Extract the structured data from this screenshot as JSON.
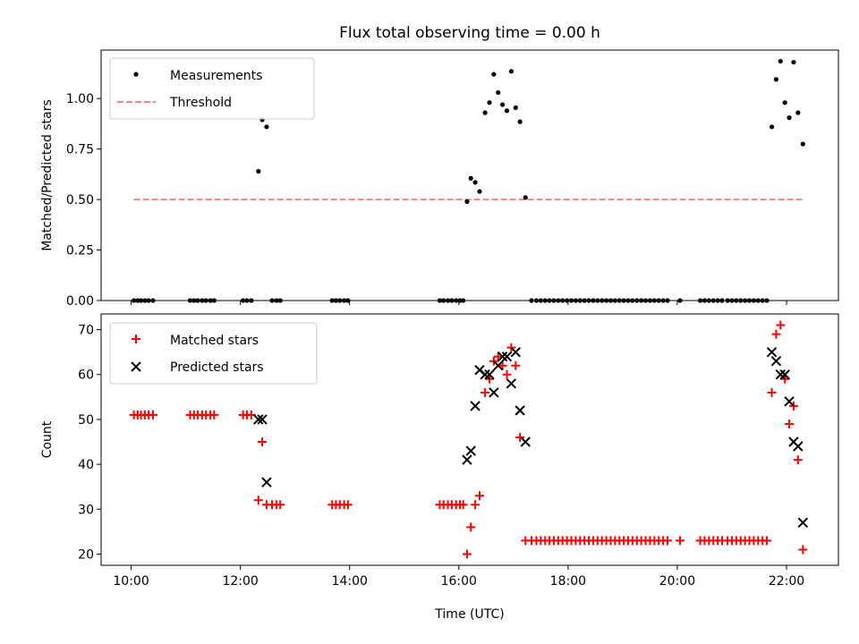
{
  "title": "Flux total observing time = 0.00 h",
  "colors": {
    "measure": "#000000",
    "threshold": "#ff7f7f",
    "matched": "#ff0000",
    "predicted": "#000000"
  },
  "chart_data": [
    {
      "type": "scatter",
      "ylabel": "Matched/Predicted stars",
      "xlim": [
        9.45,
        22.95
      ],
      "ylim": [
        0.0,
        1.24
      ],
      "yticks": [
        0.0,
        0.25,
        0.5,
        0.75,
        1.0
      ],
      "ytick_labels": [
        "0.00",
        "0.25",
        "0.50",
        "0.75",
        "1.00"
      ],
      "legend": {
        "position": "top-left",
        "entries": [
          "Measurements",
          "Threshold"
        ]
      },
      "threshold": {
        "name": "Threshold",
        "y": 0.5,
        "x": [
          10.05,
          22.33
        ]
      },
      "series": [
        {
          "name": "Measurements",
          "points": [
            [
              10.05,
              0
            ],
            [
              10.12,
              0
            ],
            [
              10.18,
              0
            ],
            [
              10.25,
              0
            ],
            [
              10.32,
              0
            ],
            [
              10.4,
              0
            ],
            [
              11.08,
              0
            ],
            [
              11.15,
              0
            ],
            [
              11.22,
              0
            ],
            [
              11.3,
              0
            ],
            [
              11.37,
              0
            ],
            [
              11.45,
              0
            ],
            [
              11.52,
              0
            ],
            [
              12.05,
              0
            ],
            [
              12.12,
              0
            ],
            [
              12.2,
              0
            ],
            [
              12.33,
              0.64
            ],
            [
              12.4,
              0.895
            ],
            [
              12.48,
              0.86
            ],
            [
              12.58,
              0
            ],
            [
              12.66,
              0
            ],
            [
              12.73,
              0
            ],
            [
              13.68,
              0
            ],
            [
              13.75,
              0
            ],
            [
              13.82,
              0
            ],
            [
              13.9,
              0
            ],
            [
              13.97,
              0
            ],
            [
              15.65,
              0
            ],
            [
              15.72,
              0
            ],
            [
              15.8,
              0
            ],
            [
              15.87,
              0
            ],
            [
              15.95,
              0
            ],
            [
              16.02,
              0
            ],
            [
              16.08,
              0
            ],
            [
              16.15,
              0.49
            ],
            [
              16.22,
              0.605
            ],
            [
              16.3,
              0.585
            ],
            [
              16.38,
              0.54
            ],
            [
              16.48,
              0.93
            ],
            [
              16.56,
              0.98
            ],
            [
              16.64,
              1.12
            ],
            [
              16.72,
              1.03
            ],
            [
              16.8,
              0.97
            ],
            [
              16.88,
              0.94
            ],
            [
              16.96,
              1.135
            ],
            [
              17.04,
              0.955
            ],
            [
              17.12,
              0.885
            ],
            [
              17.22,
              0.51
            ],
            [
              17.33,
              0
            ],
            [
              17.42,
              0
            ],
            [
              17.5,
              0
            ],
            [
              17.58,
              0
            ],
            [
              17.66,
              0
            ],
            [
              17.74,
              0
            ],
            [
              17.82,
              0
            ],
            [
              17.9,
              0
            ],
            [
              17.98,
              0
            ],
            [
              18.06,
              0
            ],
            [
              18.14,
              0
            ],
            [
              18.22,
              0
            ],
            [
              18.3,
              0
            ],
            [
              18.38,
              0
            ],
            [
              18.46,
              0
            ],
            [
              18.54,
              0
            ],
            [
              18.62,
              0
            ],
            [
              18.7,
              0
            ],
            [
              18.78,
              0
            ],
            [
              18.86,
              0
            ],
            [
              18.94,
              0
            ],
            [
              19.02,
              0
            ],
            [
              19.1,
              0
            ],
            [
              19.18,
              0
            ],
            [
              19.26,
              0
            ],
            [
              19.34,
              0
            ],
            [
              19.42,
              0
            ],
            [
              19.5,
              0
            ],
            [
              19.58,
              0
            ],
            [
              19.66,
              0
            ],
            [
              19.74,
              0
            ],
            [
              19.82,
              0
            ],
            [
              20.05,
              0
            ],
            [
              20.42,
              0
            ],
            [
              20.5,
              0
            ],
            [
              20.58,
              0
            ],
            [
              20.66,
              0
            ],
            [
              20.74,
              0
            ],
            [
              20.82,
              0
            ],
            [
              20.92,
              0
            ],
            [
              21.0,
              0
            ],
            [
              21.08,
              0
            ],
            [
              21.16,
              0
            ],
            [
              21.24,
              0
            ],
            [
              21.32,
              0
            ],
            [
              21.4,
              0
            ],
            [
              21.48,
              0
            ],
            [
              21.56,
              0
            ],
            [
              21.64,
              0
            ],
            [
              21.73,
              0.86
            ],
            [
              21.81,
              1.095
            ],
            [
              21.89,
              1.185
            ],
            [
              21.97,
              0.98
            ],
            [
              22.05,
              0.905
            ],
            [
              22.13,
              1.18
            ],
            [
              22.21,
              0.93
            ],
            [
              22.3,
              0.775
            ]
          ]
        }
      ]
    },
    {
      "type": "scatter",
      "xlabel": "Time (UTC)",
      "ylabel": "Count",
      "xlim": [
        9.45,
        22.95
      ],
      "ylim": [
        17.5,
        73.5
      ],
      "xticks": [
        10,
        12,
        14,
        16,
        18,
        20,
        22
      ],
      "xtick_labels": [
        "10:00",
        "12:00",
        "14:00",
        "16:00",
        "18:00",
        "20:00",
        "22:00"
      ],
      "yticks": [
        20,
        30,
        40,
        50,
        60,
        70
      ],
      "ytick_labels": [
        "20",
        "30",
        "40",
        "50",
        "60",
        "70"
      ],
      "legend": {
        "position": "top-left",
        "entries": [
          "Matched stars",
          "Predicted stars"
        ]
      },
      "series": [
        {
          "name": "Matched stars",
          "points": [
            [
              10.05,
              51
            ],
            [
              10.12,
              51
            ],
            [
              10.18,
              51
            ],
            [
              10.25,
              51
            ],
            [
              10.32,
              51
            ],
            [
              10.4,
              51
            ],
            [
              11.08,
              51
            ],
            [
              11.15,
              51
            ],
            [
              11.22,
              51
            ],
            [
              11.3,
              51
            ],
            [
              11.37,
              51
            ],
            [
              11.45,
              51
            ],
            [
              11.52,
              51
            ],
            [
              12.05,
              51
            ],
            [
              12.12,
              51
            ],
            [
              12.2,
              51
            ],
            [
              12.33,
              32
            ],
            [
              12.4,
              45
            ],
            [
              12.48,
              31
            ],
            [
              12.58,
              31
            ],
            [
              12.66,
              31
            ],
            [
              12.73,
              31
            ],
            [
              13.68,
              31
            ],
            [
              13.75,
              31
            ],
            [
              13.82,
              31
            ],
            [
              13.9,
              31
            ],
            [
              13.97,
              31
            ],
            [
              15.65,
              31
            ],
            [
              15.72,
              31
            ],
            [
              15.8,
              31
            ],
            [
              15.87,
              31
            ],
            [
              15.95,
              31
            ],
            [
              16.02,
              31
            ],
            [
              16.08,
              31
            ],
            [
              16.15,
              20
            ],
            [
              16.22,
              26
            ],
            [
              16.3,
              31
            ],
            [
              16.38,
              33
            ],
            [
              16.48,
              56
            ],
            [
              16.56,
              59
            ],
            [
              16.64,
              63
            ],
            [
              16.72,
              64
            ],
            [
              16.8,
              62
            ],
            [
              16.88,
              60
            ],
            [
              16.96,
              66
            ],
            [
              17.04,
              62
            ],
            [
              17.12,
              46
            ],
            [
              17.22,
              23
            ],
            [
              17.33,
              23
            ],
            [
              17.42,
              23
            ],
            [
              17.5,
              23
            ],
            [
              17.58,
              23
            ],
            [
              17.66,
              23
            ],
            [
              17.74,
              23
            ],
            [
              17.82,
              23
            ],
            [
              17.9,
              23
            ],
            [
              17.98,
              23
            ],
            [
              18.06,
              23
            ],
            [
              18.14,
              23
            ],
            [
              18.22,
              23
            ],
            [
              18.3,
              23
            ],
            [
              18.38,
              23
            ],
            [
              18.46,
              23
            ],
            [
              18.54,
              23
            ],
            [
              18.62,
              23
            ],
            [
              18.7,
              23
            ],
            [
              18.78,
              23
            ],
            [
              18.86,
              23
            ],
            [
              18.94,
              23
            ],
            [
              19.02,
              23
            ],
            [
              19.1,
              23
            ],
            [
              19.18,
              23
            ],
            [
              19.26,
              23
            ],
            [
              19.34,
              23
            ],
            [
              19.42,
              23
            ],
            [
              19.5,
              23
            ],
            [
              19.58,
              23
            ],
            [
              19.66,
              23
            ],
            [
              19.74,
              23
            ],
            [
              19.82,
              23
            ],
            [
              20.05,
              23
            ],
            [
              20.42,
              23
            ],
            [
              20.5,
              23
            ],
            [
              20.58,
              23
            ],
            [
              20.66,
              23
            ],
            [
              20.74,
              23
            ],
            [
              20.82,
              23
            ],
            [
              20.92,
              23
            ],
            [
              21.0,
              23
            ],
            [
              21.08,
              23
            ],
            [
              21.16,
              23
            ],
            [
              21.24,
              23
            ],
            [
              21.32,
              23
            ],
            [
              21.4,
              23
            ],
            [
              21.48,
              23
            ],
            [
              21.56,
              23
            ],
            [
              21.64,
              23
            ],
            [
              21.73,
              56
            ],
            [
              21.81,
              69
            ],
            [
              21.89,
              71
            ],
            [
              21.97,
              59
            ],
            [
              22.05,
              49
            ],
            [
              22.13,
              53
            ],
            [
              22.21,
              41
            ],
            [
              22.3,
              21
            ]
          ]
        },
        {
          "name": "Predicted stars",
          "points": [
            [
              12.33,
              50
            ],
            [
              12.4,
              50
            ],
            [
              12.48,
              36
            ],
            [
              16.15,
              41
            ],
            [
              16.22,
              43
            ],
            [
              16.3,
              53
            ],
            [
              16.38,
              61
            ],
            [
              16.48,
              60
            ],
            [
              16.56,
              60
            ],
            [
              16.64,
              56
            ],
            [
              16.72,
              62
            ],
            [
              16.8,
              64
            ],
            [
              16.88,
              64
            ],
            [
              16.96,
              58
            ],
            [
              17.04,
              65
            ],
            [
              17.12,
              52
            ],
            [
              17.22,
              45
            ],
            [
              21.73,
              65
            ],
            [
              21.81,
              63
            ],
            [
              21.89,
              60
            ],
            [
              21.97,
              60
            ],
            [
              22.05,
              54
            ],
            [
              22.13,
              45
            ],
            [
              22.21,
              44
            ],
            [
              22.3,
              27
            ]
          ]
        }
      ]
    }
  ]
}
